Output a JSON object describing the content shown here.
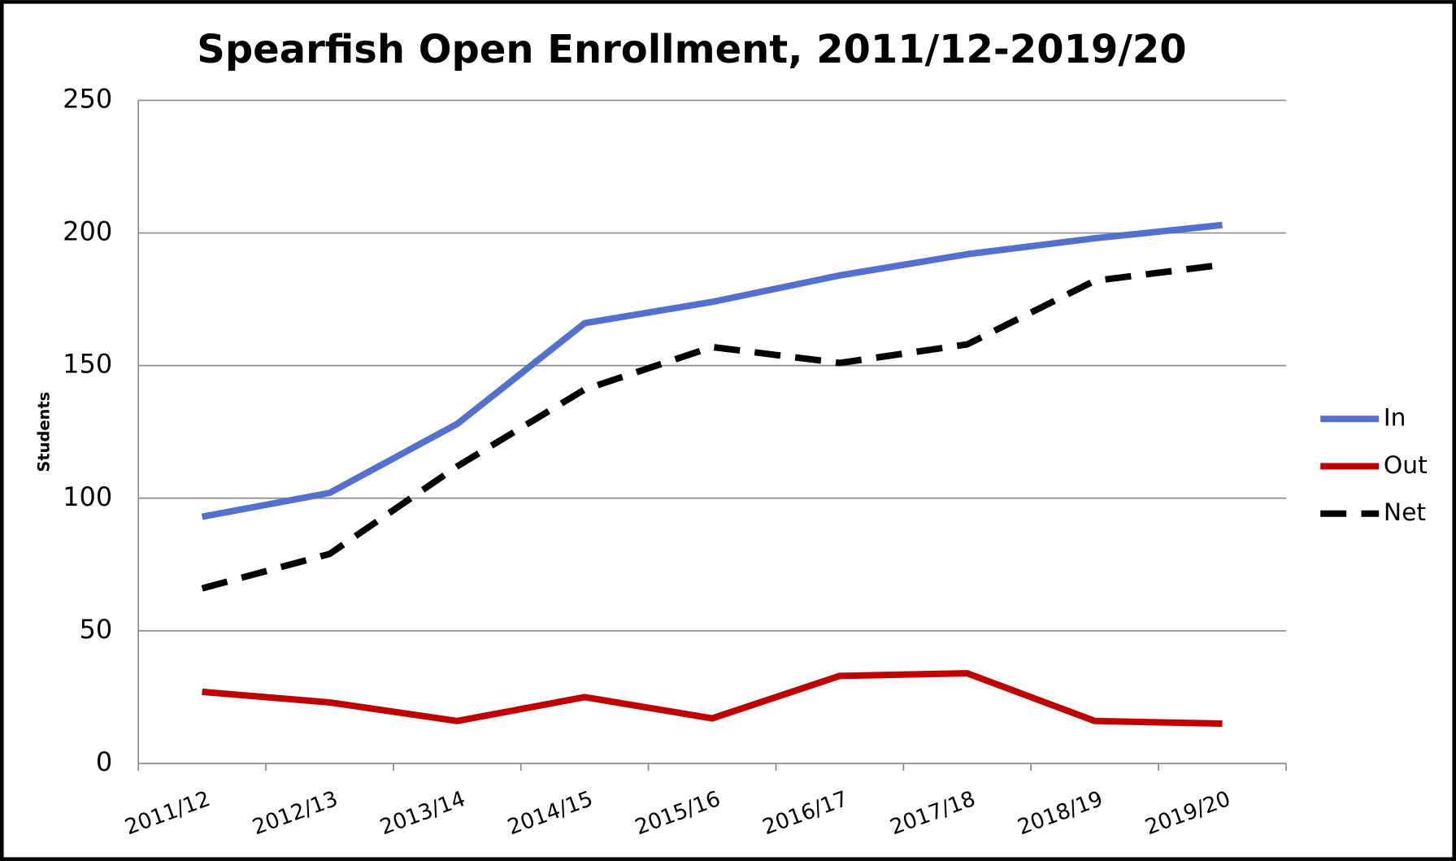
{
  "chart_data": {
    "type": "line",
    "title": "Spearfish Open Enrollment, 2011/12-2019/20",
    "y_label": "Students",
    "categories": [
      "2011/12",
      "2012/13",
      "2013/14",
      "2014/15",
      "2015/16",
      "2016/17",
      "2017/18",
      "2018/19",
      "2019/20"
    ],
    "series": [
      {
        "name": "In",
        "color": "#5470cf",
        "values": [
          93,
          102,
          128,
          166,
          174,
          184,
          192,
          198,
          203
        ]
      },
      {
        "name": "Out",
        "color": "#c00000",
        "values": [
          27,
          23,
          16,
          25,
          17,
          33,
          34,
          16,
          15
        ]
      },
      {
        "name": "Net",
        "color": "#000000",
        "dashed": true,
        "values": [
          66,
          79,
          112,
          141,
          157,
          151,
          158,
          182,
          188
        ]
      }
    ],
    "ylim": [
      0,
      250
    ],
    "yticks": [
      0,
      50,
      100,
      150,
      200,
      250
    ],
    "grid": true,
    "legend": "right"
  }
}
